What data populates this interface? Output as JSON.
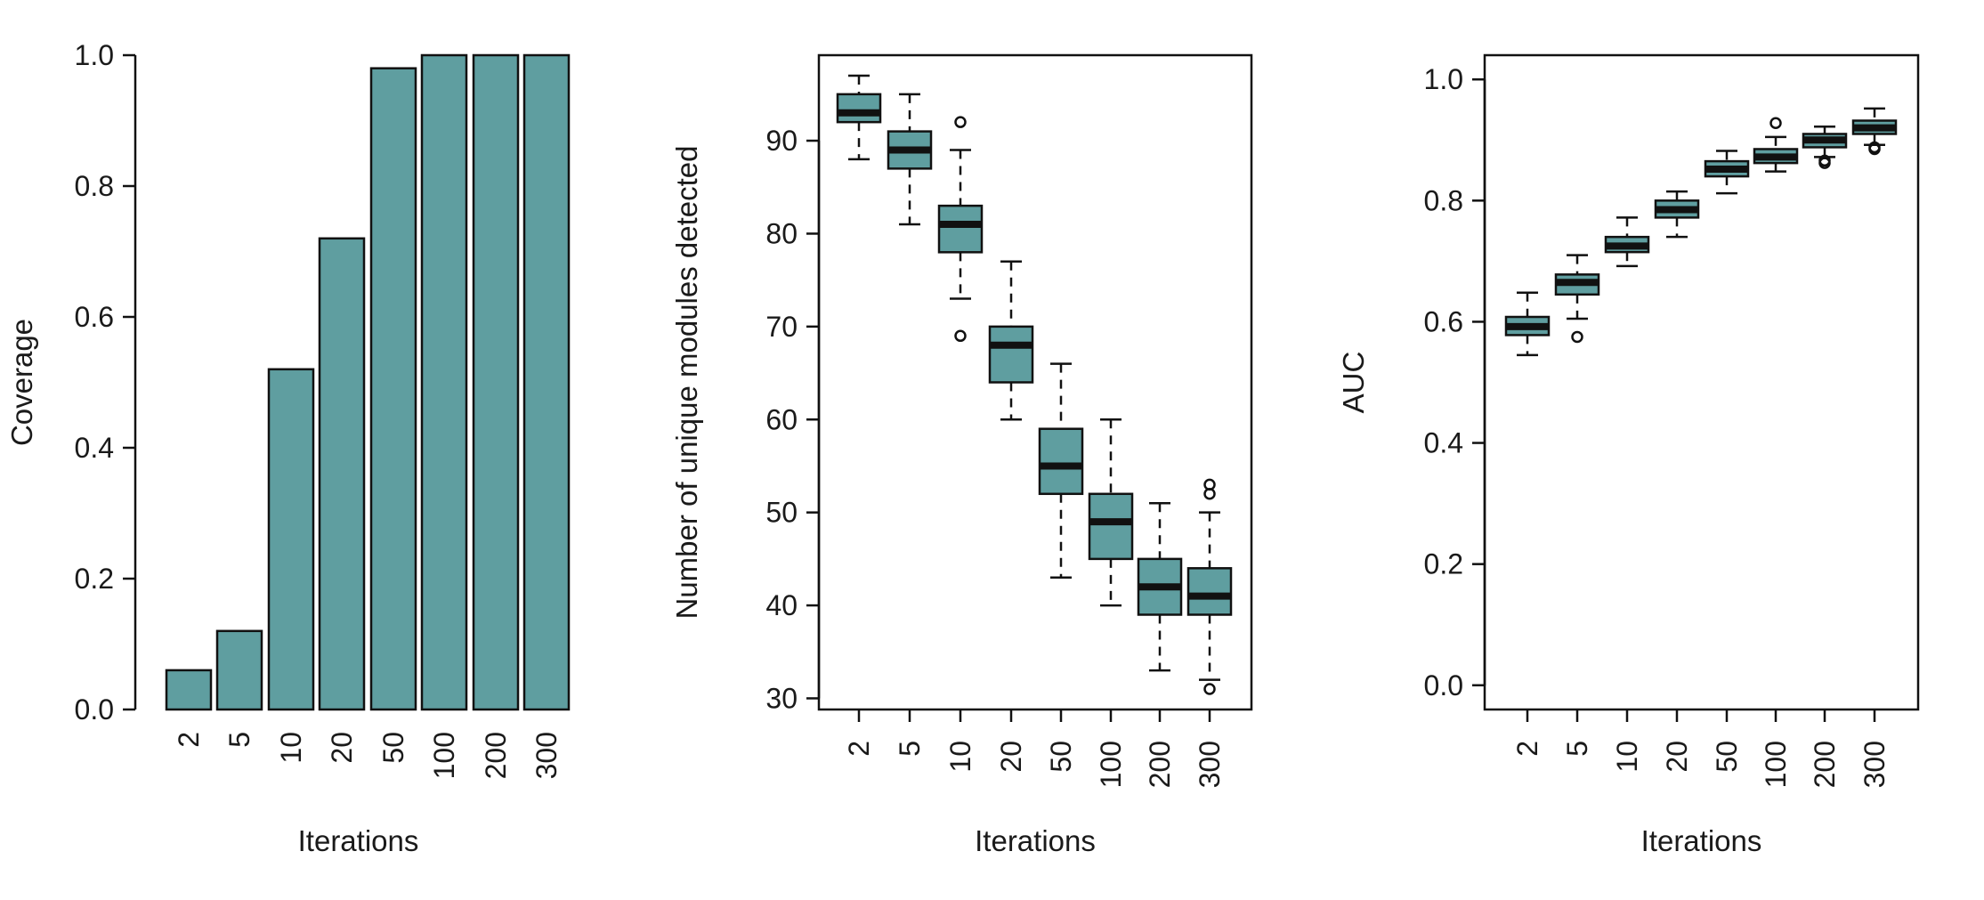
{
  "colors": {
    "fill": "#5f9ea0",
    "stroke": "#111111"
  },
  "chart_data": [
    {
      "type": "bar",
      "categories": [
        "2",
        "5",
        "10",
        "20",
        "50",
        "100",
        "200",
        "300"
      ],
      "values": [
        0.06,
        0.12,
        0.52,
        0.72,
        0.98,
        1.0,
        1.0,
        1.0
      ],
      "xlabel": "Iterations",
      "ylabel": "Coverage",
      "ylim": [
        0,
        1
      ],
      "yticks": [
        "0.0",
        "0.2",
        "0.4",
        "0.6",
        "0.8",
        "1.0"
      ],
      "frame": false,
      "grid": false
    },
    {
      "type": "box",
      "categories": [
        "2",
        "5",
        "10",
        "20",
        "50",
        "100",
        "200",
        "300"
      ],
      "boxes": [
        {
          "whisker_low": 88,
          "q1": 92,
          "median": 93,
          "q3": 95,
          "whisker_high": 97,
          "outliers": []
        },
        {
          "whisker_low": 81,
          "q1": 87,
          "median": 89,
          "q3": 91,
          "whisker_high": 95,
          "outliers": []
        },
        {
          "whisker_low": 73,
          "q1": 78,
          "median": 81,
          "q3": 83,
          "whisker_high": 89,
          "outliers": [
            69,
            92
          ]
        },
        {
          "whisker_low": 60,
          "q1": 64,
          "median": 68,
          "q3": 70,
          "whisker_high": 77,
          "outliers": []
        },
        {
          "whisker_low": 43,
          "q1": 52,
          "median": 55,
          "q3": 59,
          "whisker_high": 66,
          "outliers": []
        },
        {
          "whisker_low": 40,
          "q1": 45,
          "median": 49,
          "q3": 52,
          "whisker_high": 60,
          "outliers": []
        },
        {
          "whisker_low": 33,
          "q1": 39,
          "median": 42,
          "q3": 45,
          "whisker_high": 51,
          "outliers": []
        },
        {
          "whisker_low": 32,
          "q1": 39,
          "median": 41,
          "q3": 44,
          "whisker_high": 50,
          "outliers": [
            31,
            52,
            53
          ]
        }
      ],
      "xlabel": "Iterations",
      "ylabel": "Number of unique modules detected",
      "ylim": [
        28.8,
        99.2
      ],
      "yticks": [
        "30",
        "40",
        "50",
        "60",
        "70",
        "80",
        "90"
      ],
      "frame": true,
      "grid": false
    },
    {
      "type": "box",
      "categories": [
        "2",
        "5",
        "10",
        "20",
        "50",
        "100",
        "200",
        "300"
      ],
      "boxes": [
        {
          "whisker_low": 0.545,
          "q1": 0.578,
          "median": 0.592,
          "q3": 0.608,
          "whisker_high": 0.648,
          "outliers": []
        },
        {
          "whisker_low": 0.605,
          "q1": 0.645,
          "median": 0.665,
          "q3": 0.678,
          "whisker_high": 0.71,
          "outliers": [
            0.575
          ]
        },
        {
          "whisker_low": 0.692,
          "q1": 0.715,
          "median": 0.725,
          "q3": 0.74,
          "whisker_high": 0.772,
          "outliers": []
        },
        {
          "whisker_low": 0.74,
          "q1": 0.772,
          "median": 0.785,
          "q3": 0.8,
          "whisker_high": 0.815,
          "outliers": []
        },
        {
          "whisker_low": 0.812,
          "q1": 0.84,
          "median": 0.852,
          "q3": 0.865,
          "whisker_high": 0.882,
          "outliers": []
        },
        {
          "whisker_low": 0.848,
          "q1": 0.862,
          "median": 0.872,
          "q3": 0.885,
          "whisker_high": 0.905,
          "outliers": [
            0.928
          ]
        },
        {
          "whisker_low": 0.872,
          "q1": 0.888,
          "median": 0.9,
          "q3": 0.91,
          "whisker_high": 0.922,
          "outliers": [
            0.862,
            0.866
          ]
        },
        {
          "whisker_low": 0.892,
          "q1": 0.91,
          "median": 0.92,
          "q3": 0.932,
          "whisker_high": 0.952,
          "outliers": [
            0.885,
            0.888
          ]
        }
      ],
      "xlabel": "Iterations",
      "ylabel": "AUC",
      "ylim": [
        -0.04,
        1.04
      ],
      "yticks": [
        "0.0",
        "0.2",
        "0.4",
        "0.6",
        "0.8",
        "1.0"
      ],
      "frame": true,
      "grid": false
    }
  ]
}
